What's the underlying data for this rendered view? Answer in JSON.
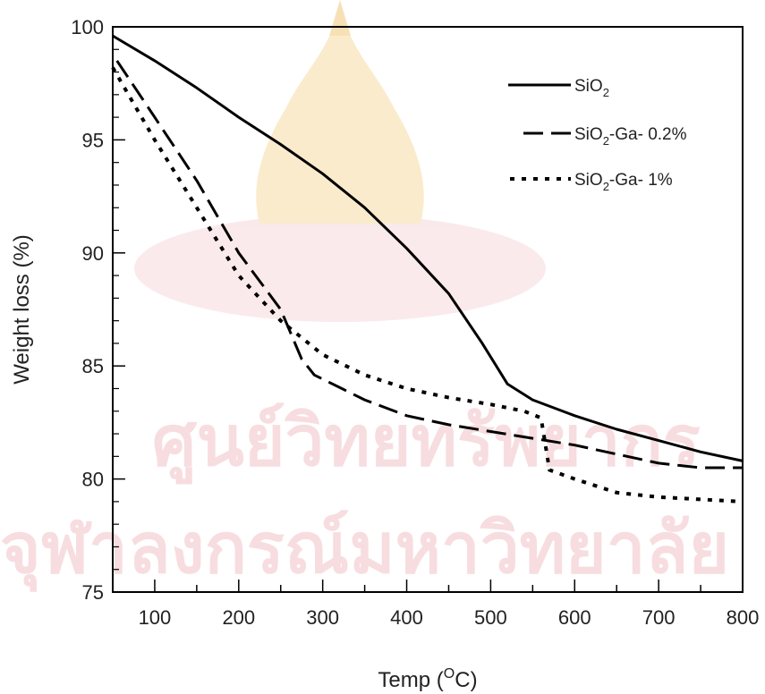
{
  "chart_data": {
    "type": "line",
    "xlabel_base": "Temp (",
    "xlabel_sup": "O",
    "xlabel_unit": "C)",
    "ylabel": "Weight loss (%)",
    "xlim": [
      50,
      800
    ],
    "ylim": [
      75,
      100
    ],
    "x_ticks": [
      100,
      200,
      300,
      400,
      500,
      600,
      700,
      800
    ],
    "y_ticks": [
      75,
      80,
      85,
      90,
      95,
      100
    ],
    "legend_position": "top-right",
    "grid": false,
    "series": [
      {
        "name": "SiO2",
        "label_base": "SiO",
        "label_sub": "2",
        "label_tail": "",
        "style": "solid",
        "points": [
          [
            50,
            99.6
          ],
          [
            100,
            98.5
          ],
          [
            150,
            97.3
          ],
          [
            200,
            96.0
          ],
          [
            250,
            94.8
          ],
          [
            300,
            93.5
          ],
          [
            350,
            92.0
          ],
          [
            400,
            90.2
          ],
          [
            450,
            88.2
          ],
          [
            490,
            86.0
          ],
          [
            520,
            84.2
          ],
          [
            550,
            83.5
          ],
          [
            600,
            82.8
          ],
          [
            650,
            82.2
          ],
          [
            700,
            81.7
          ],
          [
            750,
            81.2
          ],
          [
            800,
            80.8
          ]
        ]
      },
      {
        "name": "SiO2-Ga-0.2%",
        "label_base": "SiO",
        "label_sub": "2",
        "label_tail": "-Ga- 0.2%",
        "style": "dashed",
        "points": [
          [
            55,
            98.5
          ],
          [
            100,
            96.0
          ],
          [
            150,
            93.2
          ],
          [
            200,
            90.0
          ],
          [
            250,
            87.5
          ],
          [
            275,
            85.3
          ],
          [
            290,
            84.6
          ],
          [
            350,
            83.5
          ],
          [
            400,
            82.8
          ],
          [
            450,
            82.4
          ],
          [
            500,
            82.1
          ],
          [
            550,
            81.8
          ],
          [
            600,
            81.5
          ],
          [
            650,
            81.1
          ],
          [
            700,
            80.7
          ],
          [
            750,
            80.5
          ],
          [
            800,
            80.5
          ]
        ]
      },
      {
        "name": "SiO2-Ga-1%",
        "label_base": "SiO",
        "label_sub": "2",
        "label_tail": "-Ga- 1%",
        "style": "dotted",
        "points": [
          [
            50,
            98.2
          ],
          [
            100,
            95.0
          ],
          [
            150,
            92.0
          ],
          [
            200,
            89.0
          ],
          [
            250,
            87.0
          ],
          [
            280,
            86.1
          ],
          [
            300,
            85.5
          ],
          [
            350,
            84.6
          ],
          [
            400,
            84.0
          ],
          [
            450,
            83.6
          ],
          [
            500,
            83.3
          ],
          [
            540,
            83.0
          ],
          [
            560,
            82.7
          ],
          [
            570,
            80.4
          ],
          [
            600,
            80.0
          ],
          [
            650,
            79.4
          ],
          [
            700,
            79.2
          ],
          [
            750,
            79.1
          ],
          [
            800,
            79.0
          ]
        ]
      }
    ]
  },
  "watermark": {
    "line1": "ศูนย์วิทยทรัพยากร",
    "line2": "จุฬาลงกรณ์มหาวิทยาลัย"
  }
}
